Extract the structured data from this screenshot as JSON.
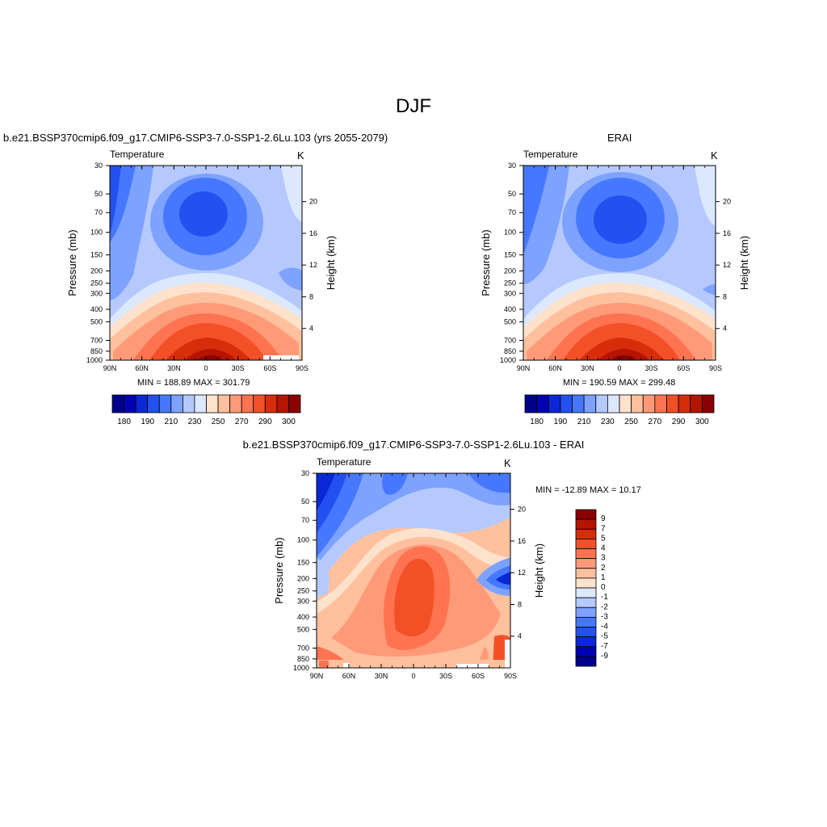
{
  "page": {
    "main_title": "DJF"
  },
  "panels": [
    {
      "id": "model",
      "case_title": "b.e21.BSSP370cmip6.f09_g17.CMIP6-SSP3-7.0-SSP1-2.6Lu.103 (yrs 2055-2079)",
      "plot_title": "Temperature",
      "units": "K",
      "minmax": "MIN = 188.89  MAX = 301.79"
    },
    {
      "id": "obs",
      "case_title": "ERAI",
      "plot_title": "Temperature",
      "units": "K",
      "minmax": "MIN = 190.59  MAX = 299.48"
    },
    {
      "id": "diff",
      "case_title": "b.e21.BSSP370cmip6.f09_g17.CMIP6-SSP3-7.0-SSP1-2.6Lu.103 - ERAI",
      "plot_title": "Temperature",
      "units": "K",
      "minmax": "MIN = -12.89  MAX =  10.17"
    }
  ],
  "chart_data": [
    {
      "type": "heatmap",
      "title": "Temperature",
      "units": "K",
      "xlabel": "",
      "ylabel": "Pressure (mb)",
      "y2label": "Height (km)",
      "x_ticks": [
        "90N",
        "60N",
        "30N",
        "0",
        "30S",
        "60S",
        "90S"
      ],
      "y_ticks": [
        "30",
        "50",
        "70",
        "100",
        "150",
        "200",
        "250",
        "300",
        "400",
        "500",
        "700",
        "850",
        "1000"
      ],
      "y2_ticks": [
        "20",
        "16",
        "12",
        "8",
        "4"
      ],
      "ylim": [
        1000,
        30
      ],
      "colorbar_labels": [
        "180",
        "190",
        "210",
        "230",
        "250",
        "270",
        "290",
        "300"
      ],
      "colorbar_colors": [
        "#00008b",
        "#0000b4",
        "#0a28d7",
        "#2350f0",
        "#4678ff",
        "#7da2ff",
        "#b5c9ff",
        "#dce8fd",
        "#ffe2cc",
        "#ffc09e",
        "#ff9a78",
        "#ff7350",
        "#f45028",
        "#d72d0a",
        "#b41400",
        "#8b0000"
      ],
      "min": 188.89,
      "max": 301.79
    },
    {
      "type": "heatmap",
      "title": "Temperature",
      "units": "K",
      "xlabel": "",
      "ylabel": "Pressure (mb)",
      "y2label": "Height (km)",
      "x_ticks": [
        "90N",
        "60N",
        "30N",
        "0",
        "30S",
        "60S",
        "90S"
      ],
      "y_ticks": [
        "30",
        "50",
        "70",
        "100",
        "150",
        "200",
        "250",
        "300",
        "400",
        "500",
        "700",
        "850",
        "1000"
      ],
      "y2_ticks": [
        "20",
        "16",
        "12",
        "8",
        "4"
      ],
      "ylim": [
        1000,
        30
      ],
      "colorbar_labels": [
        "180",
        "190",
        "210",
        "230",
        "250",
        "270",
        "290",
        "300"
      ],
      "colorbar_colors": [
        "#00008b",
        "#0000b4",
        "#0a28d7",
        "#2350f0",
        "#4678ff",
        "#7da2ff",
        "#b5c9ff",
        "#dce8fd",
        "#ffe2cc",
        "#ffc09e",
        "#ff9a78",
        "#ff7350",
        "#f45028",
        "#d72d0a",
        "#b41400",
        "#8b0000"
      ],
      "min": 190.59,
      "max": 299.48
    },
    {
      "type": "heatmap",
      "title": "Temperature",
      "units": "K",
      "xlabel": "",
      "ylabel": "Pressure (mb)",
      "y2label": "Height (km)",
      "x_ticks": [
        "90N",
        "60N",
        "30N",
        "0",
        "30S",
        "60S",
        "90S"
      ],
      "y_ticks": [
        "30",
        "50",
        "70",
        "100",
        "150",
        "200",
        "250",
        "300",
        "400",
        "500",
        "700",
        "850",
        "1000"
      ],
      "y2_ticks": [
        "20",
        "16",
        "12",
        "8",
        "4"
      ],
      "ylim": [
        1000,
        30
      ],
      "colorbar_labels": [
        "9",
        "7",
        "5",
        "4",
        "3",
        "2",
        "1",
        "0",
        "-1",
        "-2",
        "-3",
        "-4",
        "-5",
        "-7",
        "-9"
      ],
      "colorbar_colors": [
        "#8b0000",
        "#b41400",
        "#d72d0a",
        "#f45028",
        "#ff7350",
        "#ff9a78",
        "#ffc09e",
        "#ffe2cc",
        "#dce8fd",
        "#b5c9ff",
        "#7da2ff",
        "#4678ff",
        "#2350f0",
        "#0a28d7",
        "#0000b4",
        "#00008b"
      ],
      "min": -12.89,
      "max": 10.17
    }
  ]
}
